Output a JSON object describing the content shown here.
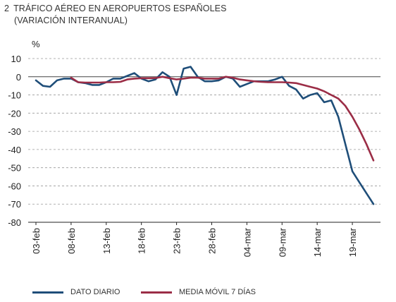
{
  "title": {
    "number": "2",
    "line1": "TRÁFICO AÉREO EN AEROPUERTOS ESPAÑOLES",
    "line2": "(VARIACIÓN INTERANUAL)"
  },
  "colors": {
    "daily": "#1f4e79",
    "ma7": "#9b2d46",
    "zero": "#444444",
    "grid": "#999999"
  },
  "chart_data": {
    "type": "line",
    "ylabel": "%",
    "ylim": [
      -80,
      10
    ],
    "yticks": [
      10,
      0,
      -10,
      -20,
      -30,
      -40,
      -50,
      -60,
      -70,
      -80
    ],
    "grid": "horizontal dashed",
    "legend_position": "bottom",
    "x_first": "03-feb",
    "x_last": "22-mar",
    "x_tick_labels": [
      "03-feb",
      "08-feb",
      "13-feb",
      "18-feb",
      "23-feb",
      "28-feb",
      "04-mar",
      "09-mar",
      "14-mar",
      "19-mar"
    ],
    "series": [
      {
        "name": "DATO DIARIO",
        "values": [
          -2,
          -5,
          -5.5,
          -2,
          -1,
          -1,
          -3,
          -3.5,
          -4.5,
          -4.5,
          -3,
          -1,
          -1,
          0.5,
          2,
          -1,
          -2.5,
          -1.5,
          2.5,
          0,
          -10,
          4.5,
          5.5,
          0,
          -2.5,
          -2.5,
          -2,
          0,
          -1,
          -5.5,
          -4,
          -2.5,
          -2.5,
          -2.5,
          -1.5,
          0,
          -5,
          -7,
          -12,
          -10,
          -9,
          -14,
          -13,
          -22,
          -37,
          -52,
          -58,
          -64,
          -70
        ]
      },
      {
        "name": "MEDIA MÓVIL 7 DÍAS",
        "values": [
          null,
          null,
          null,
          null,
          null,
          -0.5,
          -3,
          -3.2,
          -3.2,
          -3.2,
          -3,
          -3,
          -2.8,
          -1.5,
          -1,
          -0.8,
          -0.8,
          -0.7,
          0,
          -0.8,
          -1.5,
          -1,
          -0.5,
          -0.5,
          -1,
          -1,
          -1,
          0,
          -0.5,
          -1.5,
          -2,
          -2.5,
          -2.8,
          -3,
          -3,
          -3,
          -3.2,
          -3.5,
          -4.5,
          -5.5,
          -6.5,
          -8,
          -10,
          -12,
          -16,
          -22,
          -29,
          -37,
          -46
        ]
      }
    ]
  }
}
